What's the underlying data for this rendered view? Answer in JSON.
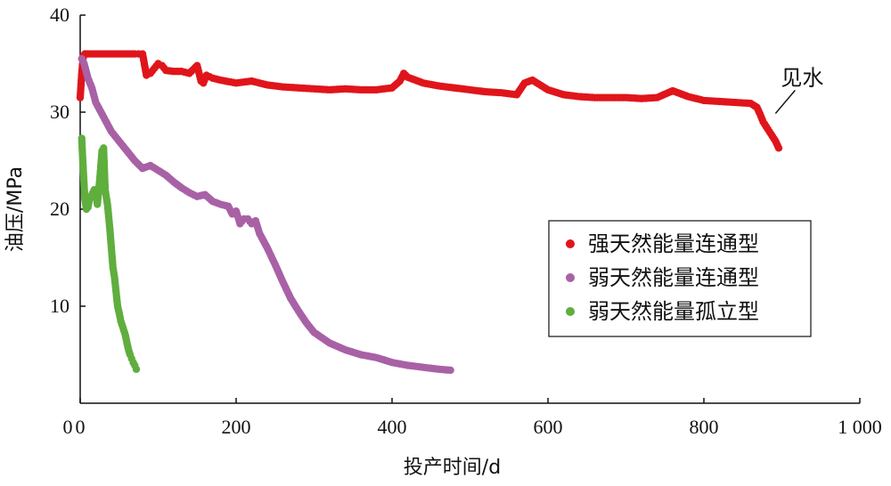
{
  "chart_data": {
    "type": "scatter",
    "title": "",
    "xlabel": "投产时间/d",
    "ylabel": "油压/MPa",
    "xlim": [
      0,
      1000
    ],
    "ylim": [
      0,
      40
    ],
    "x_ticks": [
      0,
      200,
      400,
      600,
      800,
      1000
    ],
    "x_tick_labels": [
      "0",
      "200",
      "400",
      "600",
      "800",
      "1 000"
    ],
    "y_ticks": [
      10,
      20,
      30,
      40
    ],
    "y_tick_labels": [
      "10",
      "20",
      "30",
      "40"
    ],
    "grid": false,
    "legend_position": "right",
    "annotations": [
      {
        "text": "见水",
        "x": 885,
        "y": 29.5
      }
    ],
    "series": [
      {
        "name": "强天然能量连通型",
        "color": "#e0151b",
        "x": [
          0,
          2,
          4,
          6,
          8,
          10,
          20,
          30,
          40,
          50,
          60,
          70,
          75,
          80,
          85,
          90,
          95,
          100,
          105,
          110,
          120,
          130,
          140,
          150,
          155,
          158,
          162,
          170,
          180,
          200,
          220,
          240,
          260,
          280,
          300,
          320,
          340,
          360,
          380,
          400,
          410,
          415,
          420,
          440,
          460,
          480,
          500,
          520,
          540,
          560,
          570,
          580,
          600,
          620,
          640,
          660,
          680,
          700,
          720,
          740,
          760,
          780,
          800,
          820,
          840,
          860,
          868,
          872,
          876,
          880,
          884,
          888,
          892,
          896
        ],
        "y": [
          31.5,
          34,
          35.8,
          36,
          36,
          36,
          36,
          36,
          36,
          36,
          36,
          36,
          36,
          36,
          33.8,
          34,
          34.5,
          35,
          34.8,
          34.3,
          34.2,
          34.2,
          34,
          34.8,
          33.2,
          33,
          33.8,
          33.5,
          33.3,
          33,
          33.2,
          32.8,
          32.6,
          32.5,
          32.4,
          32.3,
          32.4,
          32.3,
          32.3,
          32.5,
          33.2,
          34,
          33.6,
          33,
          32.7,
          32.5,
          32.3,
          32.1,
          32,
          31.8,
          33,
          33.3,
          32.3,
          31.8,
          31.6,
          31.5,
          31.5,
          31.5,
          31.4,
          31.5,
          32.2,
          31.6,
          31.2,
          31.1,
          31,
          30.9,
          30.5,
          29.8,
          29,
          28.5,
          28,
          27.5,
          27,
          26.3
        ]
      },
      {
        "name": "弱天然能量连通型",
        "color": "#a961a6",
        "x": [
          2,
          5,
          10,
          15,
          20,
          30,
          40,
          50,
          60,
          70,
          80,
          90,
          100,
          110,
          120,
          130,
          140,
          150,
          160,
          170,
          180,
          190,
          195,
          200,
          205,
          210,
          215,
          220,
          225,
          230,
          240,
          250,
          260,
          270,
          280,
          290,
          300,
          320,
          340,
          360,
          380,
          400,
          420,
          440,
          460,
          475
        ],
        "y": [
          35.5,
          35,
          33.5,
          32.5,
          31,
          29.5,
          28,
          27,
          26,
          25,
          24.2,
          24.5,
          24,
          23.5,
          22.8,
          22.2,
          21.7,
          21.3,
          21.5,
          20.8,
          20.5,
          20.3,
          19.5,
          19.8,
          18.5,
          19,
          19,
          18.5,
          18.8,
          17.5,
          16,
          14.3,
          12.5,
          10.8,
          9.5,
          8.3,
          7.3,
          6.2,
          5.5,
          5,
          4.7,
          4.2,
          3.9,
          3.7,
          3.5,
          3.4
        ]
      },
      {
        "name": "弱天然能量孤立型",
        "color": "#5fae3e",
        "x": [
          2,
          3,
          4,
          5,
          6,
          7,
          8,
          10,
          12,
          15,
          18,
          20,
          22,
          25,
          28,
          30,
          32,
          35,
          38,
          40,
          42,
          44,
          46,
          48,
          50,
          52,
          54,
          56,
          58,
          60,
          62,
          64,
          66,
          68,
          70,
          72
        ],
        "y": [
          27.3,
          25.5,
          24,
          22.5,
          21,
          20.5,
          20,
          20.2,
          21,
          21.5,
          22,
          21.8,
          20.5,
          23,
          26,
          26.3,
          22,
          20.5,
          18,
          16,
          14,
          13,
          11.5,
          10,
          9.3,
          8.5,
          8,
          7.5,
          7,
          6.2,
          5.5,
          5,
          4.6,
          4.2,
          3.9,
          3.5
        ]
      }
    ]
  }
}
